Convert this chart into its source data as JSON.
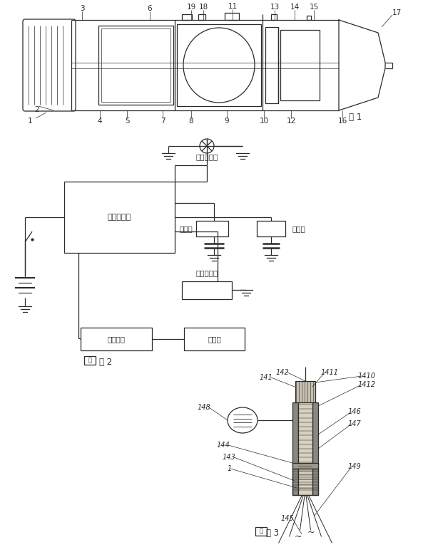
{
  "bg_color": "#ffffff",
  "line_color": "#2a2a2a",
  "fig1": {
    "title": "图 1",
    "top_labels": [
      [
        "3",
        115,
        12
      ],
      [
        "6",
        210,
        12
      ],
      [
        "19",
        275,
        12
      ],
      [
        "18",
        295,
        12
      ],
      [
        "11",
        330,
        12
      ],
      [
        "13",
        390,
        12
      ],
      [
        "14",
        415,
        12
      ],
      [
        "15",
        440,
        12
      ],
      [
        "17",
        555,
        18
      ]
    ],
    "bot_labels": [
      [
        "1",
        45,
        168
      ],
      [
        "2",
        55,
        148
      ],
      [
        "4",
        140,
        168
      ],
      [
        "5",
        178,
        168
      ],
      [
        "7",
        228,
        168
      ],
      [
        "8",
        268,
        168
      ],
      [
        "9",
        318,
        168
      ],
      [
        "10",
        372,
        168
      ],
      [
        "12",
        408,
        168
      ],
      [
        "16",
        480,
        168
      ]
    ]
  },
  "fig2": {
    "title": "图 2",
    "led_label": "发光二极管",
    "osc_label": "高频振荡器",
    "piezo1_label": "压电片",
    "piezo2_label": "压电片",
    "airflow_label": "气流传感器",
    "counter_label": "计数电路",
    "display_label": "显示屏"
  },
  "fig3": {
    "title": "图 3",
    "labels": [
      [
        "141",
        350,
        510
      ],
      [
        "142",
        390,
        520
      ],
      [
        "1411",
        432,
        522
      ],
      [
        "1410",
        500,
        512
      ],
      [
        "1412",
        500,
        500
      ],
      [
        "146",
        490,
        580
      ],
      [
        "147",
        490,
        560
      ],
      [
        "148",
        295,
        572
      ],
      [
        "144",
        328,
        628
      ],
      [
        "143",
        335,
        645
      ],
      [
        "1",
        330,
        660
      ],
      [
        "145",
        398,
        710
      ],
      [
        "149",
        490,
        658
      ]
    ]
  }
}
